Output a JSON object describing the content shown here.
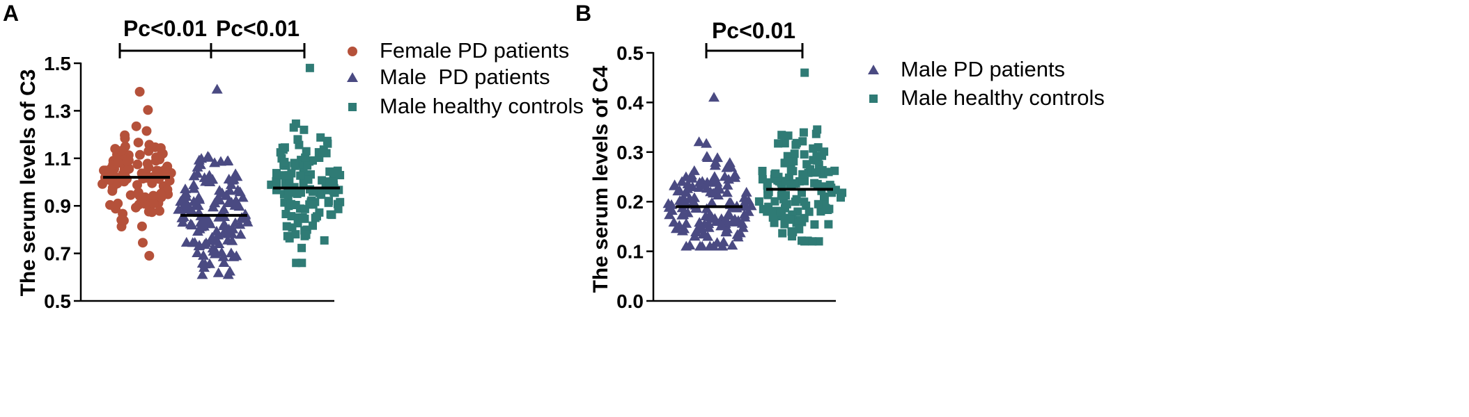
{
  "colors": {
    "female": "#b5513a",
    "male_pd": "#4a4a82",
    "male_hc": "#2f7b75",
    "axis": "#000000"
  },
  "chart_data": [
    {
      "panel": "A",
      "type": "scatter",
      "subtype": "dot-plot",
      "ylabel": "The serum levels of  C3",
      "ylim": [
        0.5,
        1.5
      ],
      "yticks": [
        0.5,
        0.7,
        0.9,
        1.1,
        1.3,
        1.5
      ],
      "tick_labels": [
        "0.5",
        "0.7",
        "0.9",
        "1.1",
        "1.3",
        "1.5"
      ],
      "series": [
        {
          "name": "Female PD patients",
          "marker": "circle",
          "color": "#b5513a",
          "mean": 1.02,
          "count": 112,
          "min": 0.69,
          "max": 1.38
        },
        {
          "name": "Male  PD patients",
          "marker": "triangle",
          "color": "#4a4a82",
          "mean": 0.86,
          "count": 135,
          "min": 0.61,
          "max": 1.39
        },
        {
          "name": "Male healthy controls",
          "marker": "square",
          "color": "#2f7b75",
          "mean": 0.975,
          "count": 125,
          "min": 0.66,
          "max": 1.48
        }
      ],
      "comparisons": [
        {
          "groups": [
            0,
            1
          ],
          "label": "Pc<0.01"
        },
        {
          "groups": [
            1,
            2
          ],
          "label": "Pc<0.01"
        }
      ]
    },
    {
      "panel": "B",
      "type": "scatter",
      "subtype": "dot-plot",
      "ylabel": "The serum levels of  C4",
      "ylim": [
        0.0,
        0.5
      ],
      "yticks": [
        0.0,
        0.1,
        0.2,
        0.3,
        0.4,
        0.5
      ],
      "tick_labels": [
        "0.0",
        "0.1",
        "0.2",
        "0.3",
        "0.4",
        "0.5"
      ],
      "series": [
        {
          "name": "Male PD patients",
          "marker": "triangle",
          "color": "#4a4a82",
          "mean": 0.19,
          "count": 140,
          "min": 0.11,
          "max": 0.41
        },
        {
          "name": "Male healthy controls",
          "marker": "square",
          "color": "#2f7b75",
          "mean": 0.225,
          "count": 130,
          "min": 0.12,
          "max": 0.46
        }
      ],
      "comparisons": [
        {
          "groups": [
            0,
            1
          ],
          "label": "Pc<0.01"
        }
      ]
    }
  ]
}
